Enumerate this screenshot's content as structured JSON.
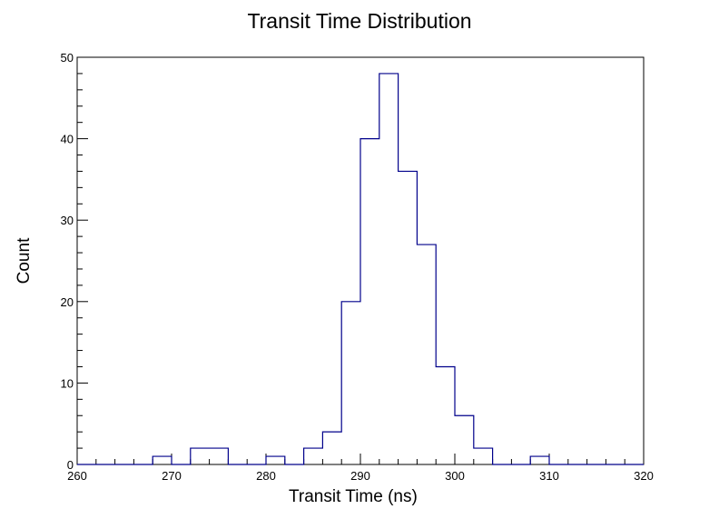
{
  "chart_data": {
    "type": "histogram",
    "title": "Transit Time Distribution",
    "xlabel": "Transit Time (ns)",
    "ylabel": "Count",
    "xlim": [
      260,
      320
    ],
    "ylim": [
      0,
      50
    ],
    "bin_width": 2,
    "bin_edges": [
      260,
      262,
      264,
      266,
      268,
      270,
      272,
      274,
      276,
      278,
      280,
      282,
      284,
      286,
      288,
      290,
      292,
      294,
      296,
      298,
      300,
      302,
      304,
      306,
      308,
      310,
      312,
      314,
      316,
      318,
      320
    ],
    "values": [
      0,
      0,
      0,
      0,
      1,
      0,
      2,
      2,
      0,
      0,
      1,
      0,
      2,
      4,
      20,
      40,
      48,
      36,
      27,
      12,
      6,
      2,
      0,
      0,
      1,
      0,
      0,
      0,
      0,
      0
    ],
    "x_ticks": [
      260,
      270,
      280,
      290,
      300,
      310,
      320
    ],
    "y_ticks": [
      0,
      10,
      20,
      30,
      40,
      50
    ],
    "line_color": "#00008b",
    "grid": false
  }
}
